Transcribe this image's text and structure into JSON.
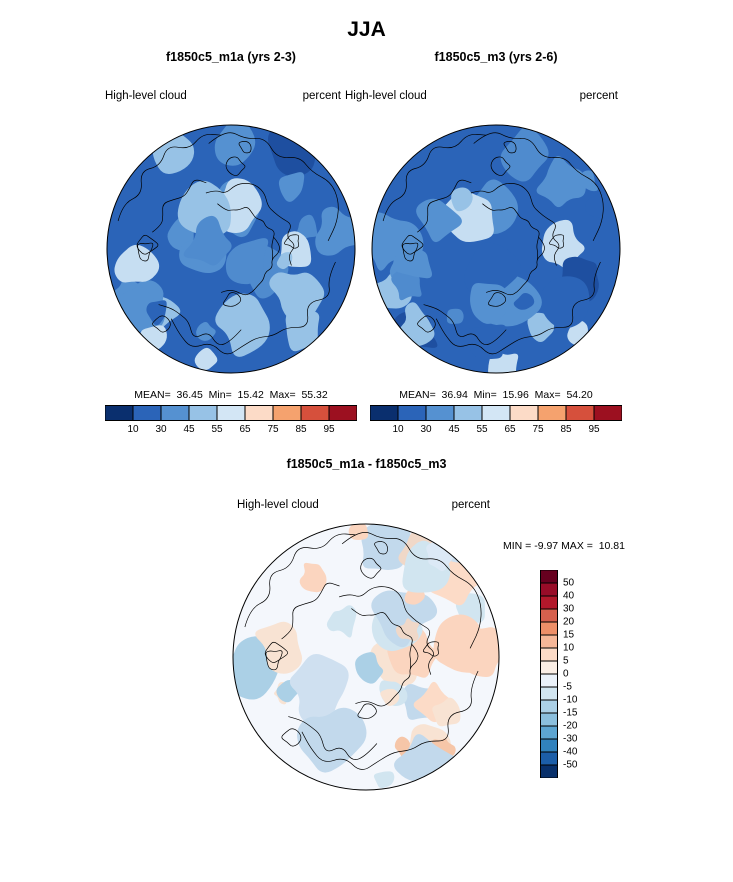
{
  "page": {
    "title": "JJA",
    "background": "#ffffff"
  },
  "panels": {
    "left": {
      "subtitle": "f1850c5_m1a (yrs 2-3)",
      "field_label": "High-level cloud",
      "units_label": "percent",
      "stats_text": "MEAN=  36.45  Min=  15.42  Max=  55.32"
    },
    "right": {
      "subtitle": "f1850c5_m3 (yrs 2-6)",
      "field_label": "High-level cloud",
      "units_label": "percent",
      "stats_text": "MEAN=  36.94  Min=  15.96  Max=  54.20"
    },
    "diff": {
      "subtitle": "f1850c5_m1a - f1850c5_m3",
      "field_label": "High-level cloud",
      "units_label": "percent",
      "stats_text": "MIN = -9.97 MAX =  10.81"
    }
  },
  "chart_data": [
    {
      "type": "heatmap",
      "subtype": "filled-contour-map",
      "projection": "north-polar-stereographic",
      "title": "f1850c5_m1a (yrs 2-3)",
      "season": "JJA",
      "variable": "High-level cloud",
      "units": "percent",
      "stats": {
        "mean": 36.45,
        "min": 15.42,
        "max": 55.32
      },
      "colorbar": {
        "orientation": "horizontal",
        "tick_labels": [
          10,
          30,
          45,
          55,
          65,
          75,
          85,
          95
        ],
        "colors": [
          "#0a2f6e",
          "#2b64b8",
          "#5591d1",
          "#97c2e6",
          "#d3e6f5",
          "#fcdbc7",
          "#f5a26e",
          "#d6503c",
          "#9c1020"
        ]
      },
      "map_colors": {
        "base": "#2b64b8",
        "patches": [
          "#5591d1",
          "#5591d1",
          "#5591d1",
          "#4f8bce",
          "#97c2e6",
          "#97c2e6",
          "#c6def2",
          "#1e4fa0",
          "#2b64b8",
          "#2b64b8"
        ],
        "coastline": "#000000"
      }
    },
    {
      "type": "heatmap",
      "subtype": "filled-contour-map",
      "projection": "north-polar-stereographic",
      "title": "f1850c5_m3 (yrs 2-6)",
      "season": "JJA",
      "variable": "High-level cloud",
      "units": "percent",
      "stats": {
        "mean": 36.94,
        "min": 15.96,
        "max": 54.2
      },
      "colorbar": {
        "orientation": "horizontal",
        "tick_labels": [
          10,
          30,
          45,
          55,
          65,
          75,
          85,
          95
        ],
        "colors": [
          "#0a2f6e",
          "#2b64b8",
          "#5591d1",
          "#97c2e6",
          "#d3e6f5",
          "#fcdbc7",
          "#f5a26e",
          "#d6503c",
          "#9c1020"
        ]
      },
      "map_colors": {
        "base": "#2b64b8",
        "patches": [
          "#5591d1",
          "#5591d1",
          "#5591d1",
          "#4f8bce",
          "#97c2e6",
          "#97c2e6",
          "#c6def2",
          "#1e4fa0",
          "#2b64b8",
          "#2b64b8"
        ],
        "coastline": "#000000"
      }
    },
    {
      "type": "heatmap",
      "subtype": "filled-contour-difference-map",
      "projection": "north-polar-stereographic",
      "title": "f1850c5_m1a - f1850c5_m3",
      "season": "JJA",
      "variable": "High-level cloud",
      "units": "percent",
      "stats": {
        "min": -9.97,
        "max": 10.81
      },
      "colorbar": {
        "orientation": "vertical",
        "tick_labels": [
          50,
          40,
          30,
          20,
          15,
          10,
          5,
          0,
          -5,
          -10,
          -15,
          -20,
          -30,
          -40,
          -50
        ],
        "colors": [
          "#67001f",
          "#980c28",
          "#b2182b",
          "#d6604d",
          "#ee8f68",
          "#f6b798",
          "#fcdbc7",
          "#faeee5",
          "#eaf1f9",
          "#d1e5f0",
          "#abd0e6",
          "#8bbfdd",
          "#5da5d1",
          "#3182bd",
          "#1c5ea8",
          "#08306b"
        ]
      },
      "map_colors": {
        "base": "#f4f7fc",
        "patches": [
          "#fcdbc7",
          "#f8e3d3",
          "#f6c6a8",
          "#fbd5bf",
          "#d1e5f0",
          "#c2d9ec",
          "#abd0e6",
          "#dce9f6",
          "#f0d8c8",
          "#cfe0f0"
        ],
        "coastline": "#000000"
      }
    }
  ]
}
